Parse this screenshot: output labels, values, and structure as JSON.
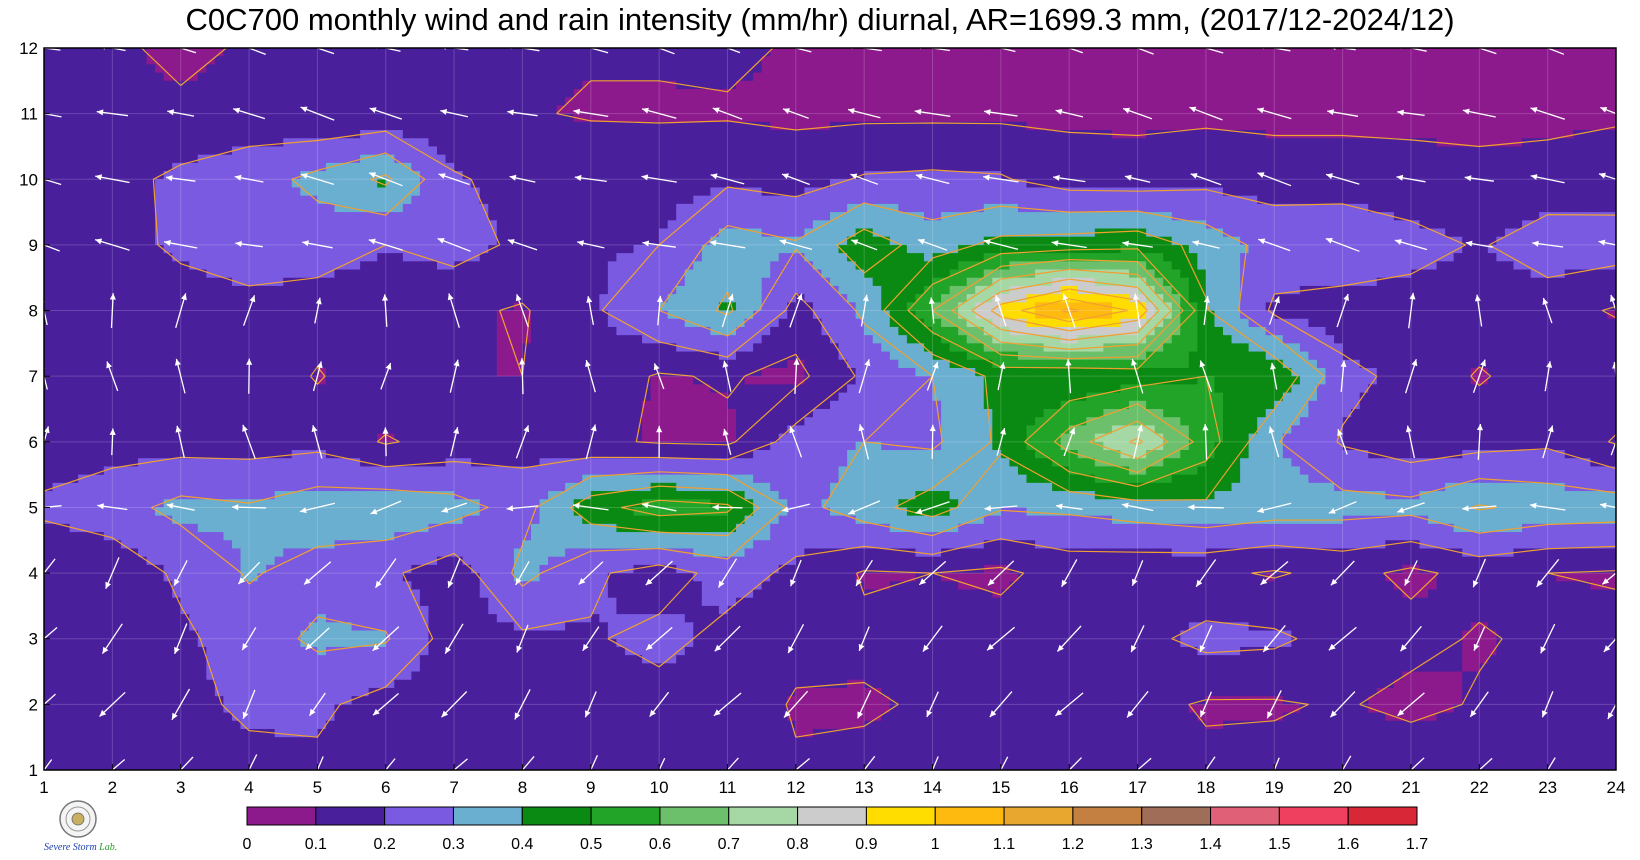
{
  "title": "C0C700 monthly wind and rain intensity (mm/hr) diurnal, AR=1699.3 mm, (2017/12-2024/12)",
  "logo": {
    "text_main": "Severe Storm",
    "text_lab": "Lab."
  },
  "chart_data": {
    "type": "heatmap",
    "subtype": "filled contour with wind vectors",
    "title": "C0C700 monthly wind and rain intensity (mm/hr) diurnal, AR=1699.3 mm, (2017/12-2024/12)",
    "xlabel": "",
    "ylabel": "",
    "x": [
      1,
      2,
      3,
      4,
      5,
      6,
      7,
      8,
      9,
      10,
      11,
      12,
      13,
      14,
      15,
      16,
      17,
      18,
      19,
      20,
      21,
      22,
      23,
      24
    ],
    "y": [
      1,
      2,
      3,
      4,
      5,
      6,
      7,
      8,
      9,
      10,
      11,
      12
    ],
    "xlim": [
      1,
      24
    ],
    "ylim": [
      1,
      12
    ],
    "grid": true,
    "colorbar": {
      "levels": [
        0,
        0.1,
        0.2,
        0.3,
        0.4,
        0.5,
        0.6,
        0.7,
        0.8,
        0.9,
        1,
        1.1,
        1.2,
        1.3,
        1.4,
        1.5,
        1.6,
        1.7
      ],
      "tick_labels": [
        "0",
        "0.1",
        "0.2",
        "0.3",
        "0.4",
        "0.5",
        "0.6",
        "0.7",
        "0.8",
        "0.9",
        "1",
        "1.1",
        "1.2",
        "1.3",
        "1.4",
        "1.5",
        "1.6",
        "1.7"
      ],
      "colors": [
        "#8c1a8c",
        "#4a1f9c",
        "#7a5ae0",
        "#6aaed0",
        "#0a8a12",
        "#22a428",
        "#6cc06c",
        "#a6d8a6",
        "#cccccc",
        "#ffdd00",
        "#ffba10",
        "#e8a830",
        "#c48040",
        "#a06e58",
        "#e06078",
        "#f04060",
        "#d82838"
      ]
    },
    "contour_line_color": "#f0a030",
    "vector_color": "#ffffff",
    "values": [
      [
        0.12,
        0.13,
        0.16,
        0.17,
        0.18,
        0.16,
        0.13,
        0.12,
        0.12,
        0.14,
        0.17,
        0.11,
        0.12,
        0.12,
        0.13,
        0.13,
        0.12,
        0.12,
        0.13,
        0.14,
        0.18,
        0.14,
        0.13,
        0.12
      ],
      [
        0.13,
        0.14,
        0.17,
        0.22,
        0.22,
        0.16,
        0.14,
        0.14,
        0.15,
        0.16,
        0.16,
        0.09,
        0.09,
        0.11,
        0.11,
        0.12,
        0.13,
        0.09,
        0.09,
        0.11,
        0.07,
        0.11,
        0.12,
        0.12
      ],
      [
        0.16,
        0.15,
        0.18,
        0.25,
        0.32,
        0.31,
        0.15,
        0.18,
        0.19,
        0.23,
        0.17,
        0.13,
        0.12,
        0.13,
        0.14,
        0.16,
        0.17,
        0.23,
        0.22,
        0.16,
        0.13,
        0.09,
        0.12,
        0.13
      ],
      [
        0.12,
        0.13,
        0.22,
        0.31,
        0.26,
        0.22,
        0.14,
        0.33,
        0.22,
        0.15,
        0.24,
        0.18,
        0.09,
        0.1,
        0.08,
        0.14,
        0.13,
        0.12,
        0.09,
        0.13,
        0.08,
        0.13,
        0.1,
        0.09
      ],
      [
        0.22,
        0.26,
        0.33,
        0.31,
        0.36,
        0.38,
        0.34,
        0.26,
        0.46,
        0.55,
        0.52,
        0.26,
        0.36,
        0.45,
        0.31,
        0.32,
        0.35,
        0.38,
        0.35,
        0.34,
        0.33,
        0.41,
        0.37,
        0.36
      ],
      [
        0.14,
        0.16,
        0.16,
        0.16,
        0.17,
        0.09,
        0.14,
        0.16,
        0.12,
        0.09,
        0.08,
        0.25,
        0.3,
        0.28,
        0.42,
        0.65,
        0.82,
        0.55,
        0.31,
        0.19,
        0.14,
        0.16,
        0.18,
        0.09
      ],
      [
        0.16,
        0.17,
        0.18,
        0.19,
        0.09,
        0.18,
        0.1,
        0.1,
        0.16,
        0.09,
        0.11,
        0.07,
        0.22,
        0.3,
        0.43,
        0.41,
        0.44,
        0.5,
        0.49,
        0.23,
        0.17,
        0.09,
        0.15,
        0.18
      ],
      [
        0.16,
        0.15,
        0.15,
        0.17,
        0.16,
        0.17,
        0.12,
        0.09,
        0.18,
        0.3,
        0.42,
        0.16,
        0.32,
        0.6,
        0.95,
        1.12,
        0.98,
        0.41,
        0.18,
        0.14,
        0.15,
        0.16,
        0.14,
        0.09
      ],
      [
        0.11,
        0.16,
        0.22,
        0.25,
        0.24,
        0.2,
        0.24,
        0.18,
        0.19,
        0.2,
        0.35,
        0.31,
        0.46,
        0.35,
        0.43,
        0.45,
        0.47,
        0.36,
        0.26,
        0.3,
        0.24,
        0.19,
        0.26,
        0.25
      ],
      [
        0.14,
        0.17,
        0.22,
        0.25,
        0.33,
        0.42,
        0.21,
        0.17,
        0.18,
        0.16,
        0.18,
        0.16,
        0.21,
        0.22,
        0.21,
        0.15,
        0.14,
        0.17,
        0.16,
        0.14,
        0.13,
        0.12,
        0.13,
        0.14
      ],
      [
        0.1,
        0.12,
        0.13,
        0.15,
        0.11,
        0.12,
        0.13,
        0.11,
        0.09,
        0.09,
        0.09,
        0.08,
        0.08,
        0.08,
        0.08,
        0.08,
        0.08,
        0.08,
        0.07,
        0.08,
        0.08,
        0.08,
        0.08,
        0.09
      ],
      [
        0.12,
        0.13,
        0.06,
        0.12,
        0.13,
        0.14,
        0.13,
        0.12,
        0.11,
        0.11,
        0.12,
        0.09,
        0.08,
        0.07,
        0.07,
        0.07,
        0.06,
        0.07,
        0.07,
        0.07,
        0.08,
        0.09,
        0.07,
        0.08
      ]
    ],
    "wind_vectors": "unit-direction arrows at every (x,y) grid node",
    "wind_direction_note": "arrow directions shown qualitatively"
  }
}
